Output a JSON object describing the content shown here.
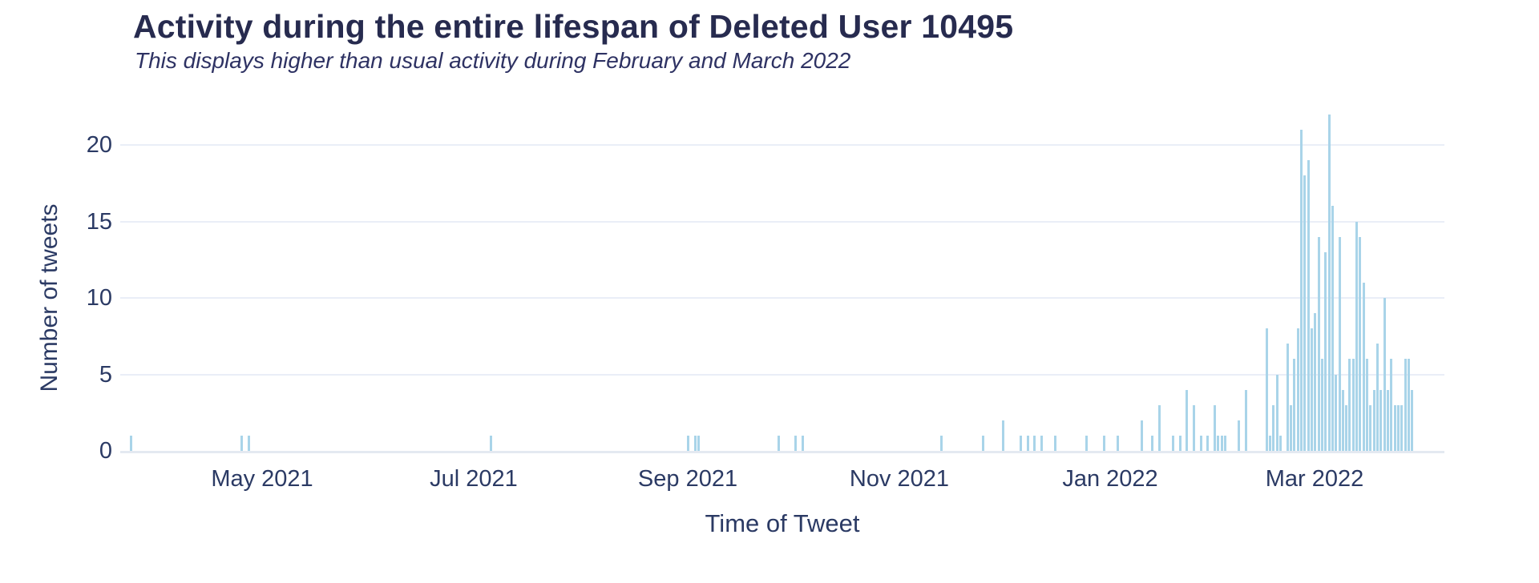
{
  "chart_data": {
    "type": "bar",
    "title": "Activity during the entire lifespan of Deleted User 10495",
    "subtitle": "This displays higher than usual activity during February and March 2022",
    "xlabel": "Time of Tweet",
    "ylabel": "Number of tweets",
    "ylim": [
      0,
      23.3
    ],
    "yticks": [
      0,
      5,
      10,
      15,
      20
    ],
    "grid": "horizontal",
    "legend": "none",
    "bar_color": "#a9d4e9",
    "axis_text_color": "#2b3a64",
    "title_color": "#272b4f",
    "xticks": [
      {
        "label": "May 2021",
        "date": "2021-05-01"
      },
      {
        "label": "Jul 2021",
        "date": "2021-07-01"
      },
      {
        "label": "Sep 2021",
        "date": "2021-09-01"
      },
      {
        "label": "Nov 2021",
        "date": "2021-11-01"
      },
      {
        "label": "Jan 2022",
        "date": "2022-01-01"
      },
      {
        "label": "Mar 2022",
        "date": "2022-03-01"
      }
    ],
    "points": [
      {
        "date": "2021-03-24",
        "value": 1
      },
      {
        "date": "2021-04-25",
        "value": 1
      },
      {
        "date": "2021-04-27",
        "value": 1
      },
      {
        "date": "2021-07-06",
        "value": 1
      },
      {
        "date": "2021-09-01",
        "value": 1
      },
      {
        "date": "2021-09-03",
        "value": 1
      },
      {
        "date": "2021-09-04",
        "value": 1
      },
      {
        "date": "2021-09-27",
        "value": 1
      },
      {
        "date": "2021-10-02",
        "value": 1
      },
      {
        "date": "2021-10-04",
        "value": 1
      },
      {
        "date": "2021-11-13",
        "value": 1
      },
      {
        "date": "2021-11-25",
        "value": 1
      },
      {
        "date": "2021-12-01",
        "value": 2
      },
      {
        "date": "2021-12-06",
        "value": 1
      },
      {
        "date": "2021-12-08",
        "value": 1
      },
      {
        "date": "2021-12-10",
        "value": 1
      },
      {
        "date": "2021-12-12",
        "value": 1
      },
      {
        "date": "2021-12-16",
        "value": 1
      },
      {
        "date": "2021-12-25",
        "value": 1
      },
      {
        "date": "2021-12-30",
        "value": 1
      },
      {
        "date": "2022-01-03",
        "value": 1
      },
      {
        "date": "2022-01-10",
        "value": 2
      },
      {
        "date": "2022-01-13",
        "value": 1
      },
      {
        "date": "2022-01-15",
        "value": 3
      },
      {
        "date": "2022-01-19",
        "value": 1
      },
      {
        "date": "2022-01-21",
        "value": 1
      },
      {
        "date": "2022-01-23",
        "value": 4
      },
      {
        "date": "2022-01-25",
        "value": 3
      },
      {
        "date": "2022-01-27",
        "value": 1
      },
      {
        "date": "2022-01-29",
        "value": 1
      },
      {
        "date": "2022-01-31",
        "value": 3
      },
      {
        "date": "2022-02-01",
        "value": 1
      },
      {
        "date": "2022-02-02",
        "value": 1
      },
      {
        "date": "2022-02-03",
        "value": 1
      },
      {
        "date": "2022-02-07",
        "value": 2
      },
      {
        "date": "2022-02-09",
        "value": 4
      },
      {
        "date": "2022-02-15",
        "value": 8
      },
      {
        "date": "2022-02-16",
        "value": 1
      },
      {
        "date": "2022-02-17",
        "value": 3
      },
      {
        "date": "2022-02-18",
        "value": 5
      },
      {
        "date": "2022-02-19",
        "value": 1
      },
      {
        "date": "2022-02-21",
        "value": 7
      },
      {
        "date": "2022-02-22",
        "value": 3
      },
      {
        "date": "2022-02-23",
        "value": 6
      },
      {
        "date": "2022-02-24",
        "value": 8
      },
      {
        "date": "2022-02-25",
        "value": 21
      },
      {
        "date": "2022-02-26",
        "value": 18
      },
      {
        "date": "2022-02-27",
        "value": 19
      },
      {
        "date": "2022-02-28",
        "value": 8
      },
      {
        "date": "2022-03-01",
        "value": 9
      },
      {
        "date": "2022-03-02",
        "value": 14
      },
      {
        "date": "2022-03-03",
        "value": 6
      },
      {
        "date": "2022-03-04",
        "value": 13
      },
      {
        "date": "2022-03-05",
        "value": 22
      },
      {
        "date": "2022-03-06",
        "value": 16
      },
      {
        "date": "2022-03-07",
        "value": 5
      },
      {
        "date": "2022-03-08",
        "value": 14
      },
      {
        "date": "2022-03-09",
        "value": 4
      },
      {
        "date": "2022-03-10",
        "value": 3
      },
      {
        "date": "2022-03-11",
        "value": 6
      },
      {
        "date": "2022-03-12",
        "value": 6
      },
      {
        "date": "2022-03-13",
        "value": 15
      },
      {
        "date": "2022-03-14",
        "value": 14
      },
      {
        "date": "2022-03-15",
        "value": 11
      },
      {
        "date": "2022-03-16",
        "value": 6
      },
      {
        "date": "2022-03-17",
        "value": 3
      },
      {
        "date": "2022-03-18",
        "value": 4
      },
      {
        "date": "2022-03-19",
        "value": 7
      },
      {
        "date": "2022-03-20",
        "value": 4
      },
      {
        "date": "2022-03-21",
        "value": 10
      },
      {
        "date": "2022-03-22",
        "value": 4
      },
      {
        "date": "2022-03-23",
        "value": 6
      },
      {
        "date": "2022-03-24",
        "value": 3
      },
      {
        "date": "2022-03-25",
        "value": 3
      },
      {
        "date": "2022-03-26",
        "value": 3
      },
      {
        "date": "2022-03-27",
        "value": 6
      },
      {
        "date": "2022-03-28",
        "value": 6
      },
      {
        "date": "2022-03-29",
        "value": 4
      }
    ]
  }
}
